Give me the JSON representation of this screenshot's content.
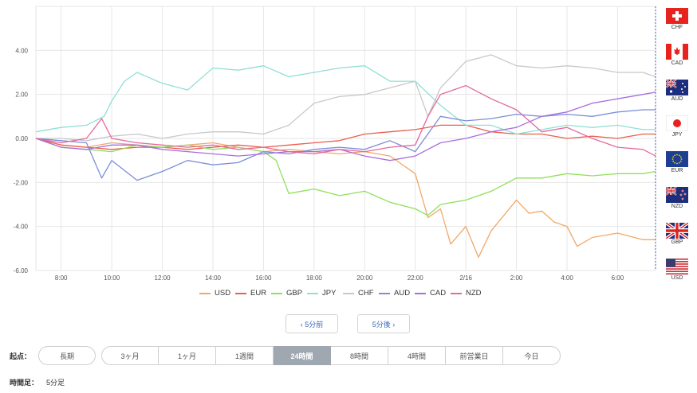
{
  "chart_data": {
    "type": "line",
    "ylim": [
      -6,
      6
    ],
    "yticks": [
      "4.00",
      "2.00",
      "0.00",
      "-2.00",
      "-4.00",
      "-6.00"
    ],
    "ytick_values": [
      4,
      2,
      0,
      -2,
      -4,
      -6
    ],
    "xlim": [
      7,
      31.5
    ],
    "xticks": [
      "8:00",
      "10:00",
      "12:00",
      "14:00",
      "16:00",
      "18:00",
      "20:00",
      "22:00",
      "2/16",
      "2:00",
      "4:00",
      "6:00"
    ],
    "xtick_values": [
      8,
      10,
      12,
      14,
      16,
      18,
      20,
      22,
      24,
      26,
      28,
      30
    ],
    "grid": true,
    "legend_position": "bottom",
    "series": [
      {
        "name": "USD",
        "color": "#f0a868",
        "points": [
          [
            7,
            0
          ],
          [
            8,
            -0.3
          ],
          [
            9,
            -0.4
          ],
          [
            10,
            -0.2
          ],
          [
            11,
            -0.3
          ],
          [
            12,
            -0.4
          ],
          [
            13,
            -0.3
          ],
          [
            14,
            -0.2
          ],
          [
            15,
            -0.4
          ],
          [
            16,
            -0.6
          ],
          [
            17,
            -0.5
          ],
          [
            18,
            -0.6
          ],
          [
            19,
            -0.7
          ],
          [
            20,
            -0.6
          ],
          [
            21,
            -0.8
          ],
          [
            22,
            -1.6
          ],
          [
            22.5,
            -3.6
          ],
          [
            23,
            -3.2
          ],
          [
            23.4,
            -4.8
          ],
          [
            24,
            -4.0
          ],
          [
            24.5,
            -5.4
          ],
          [
            25,
            -4.2
          ],
          [
            26,
            -2.8
          ],
          [
            26.5,
            -3.4
          ],
          [
            27,
            -3.3
          ],
          [
            27.5,
            -3.8
          ],
          [
            28,
            -4.0
          ],
          [
            28.4,
            -4.9
          ],
          [
            29,
            -4.5
          ],
          [
            30,
            -4.3
          ],
          [
            31,
            -4.6
          ],
          [
            31.5,
            -4.6
          ]
        ]
      },
      {
        "name": "EUR",
        "color": "#ea5e4d",
        "points": [
          [
            7,
            0
          ],
          [
            8,
            -0.3
          ],
          [
            9,
            -0.4
          ],
          [
            10,
            -0.5
          ],
          [
            11,
            -0.4
          ],
          [
            12,
            -0.4
          ],
          [
            13,
            -0.5
          ],
          [
            14,
            -0.4
          ],
          [
            15,
            -0.3
          ],
          [
            16,
            -0.4
          ],
          [
            17,
            -0.3
          ],
          [
            18,
            -0.2
          ],
          [
            19,
            -0.1
          ],
          [
            20,
            0.2
          ],
          [
            21,
            0.3
          ],
          [
            22,
            0.4
          ],
          [
            23,
            0.6
          ],
          [
            24,
            0.6
          ],
          [
            25,
            0.3
          ],
          [
            26,
            0.2
          ],
          [
            27,
            0.2
          ],
          [
            28,
            0.0
          ],
          [
            29,
            0.1
          ],
          [
            30,
            0.0
          ],
          [
            31,
            0.2
          ],
          [
            31.5,
            0.2
          ]
        ]
      },
      {
        "name": "GBP",
        "color": "#8fe05a",
        "points": [
          [
            7,
            0
          ],
          [
            8,
            -0.4
          ],
          [
            9,
            -0.5
          ],
          [
            10,
            -0.6
          ],
          [
            11,
            -0.3
          ],
          [
            12,
            -0.4
          ],
          [
            13,
            -0.3
          ],
          [
            14,
            -0.5
          ],
          [
            15,
            -0.4
          ],
          [
            16,
            -0.6
          ],
          [
            16.5,
            -1.0
          ],
          [
            17,
            -2.5
          ],
          [
            18,
            -2.3
          ],
          [
            19,
            -2.6
          ],
          [
            20,
            -2.4
          ],
          [
            21,
            -2.9
          ],
          [
            22,
            -3.2
          ],
          [
            22.5,
            -3.5
          ],
          [
            23,
            -3.0
          ],
          [
            24,
            -2.8
          ],
          [
            25,
            -2.4
          ],
          [
            26,
            -1.8
          ],
          [
            27,
            -1.8
          ],
          [
            28,
            -1.6
          ],
          [
            29,
            -1.7
          ],
          [
            30,
            -1.6
          ],
          [
            31,
            -1.6
          ],
          [
            31.5,
            -1.5
          ]
        ]
      },
      {
        "name": "JPY",
        "color": "#8ee0d6",
        "points": [
          [
            7,
            0.3
          ],
          [
            8,
            0.5
          ],
          [
            9,
            0.6
          ],
          [
            9.7,
            1.0
          ],
          [
            10,
            1.7
          ],
          [
            10.5,
            2.6
          ],
          [
            11,
            3.0
          ],
          [
            12,
            2.5
          ],
          [
            13,
            2.2
          ],
          [
            14,
            3.2
          ],
          [
            15,
            3.1
          ],
          [
            16,
            3.3
          ],
          [
            17,
            2.8
          ],
          [
            18,
            3.0
          ],
          [
            19,
            3.2
          ],
          [
            20,
            3.3
          ],
          [
            21,
            2.6
          ],
          [
            22,
            2.6
          ],
          [
            23,
            1.5
          ],
          [
            24,
            0.6
          ],
          [
            25,
            0.6
          ],
          [
            26,
            0.2
          ],
          [
            27,
            0.4
          ],
          [
            28,
            0.6
          ],
          [
            29,
            0.5
          ],
          [
            30,
            0.6
          ],
          [
            31,
            0.4
          ],
          [
            31.5,
            0.4
          ]
        ]
      },
      {
        "name": "CHF",
        "color": "#c8c8c8",
        "points": [
          [
            7,
            0
          ],
          [
            8,
            0
          ],
          [
            9,
            -0.1
          ],
          [
            10,
            0.1
          ],
          [
            11,
            0.2
          ],
          [
            12,
            0
          ],
          [
            13,
            0.2
          ],
          [
            14,
            0.3
          ],
          [
            15,
            0.3
          ],
          [
            16,
            0.2
          ],
          [
            17,
            0.6
          ],
          [
            18,
            1.6
          ],
          [
            19,
            1.9
          ],
          [
            20,
            2.0
          ],
          [
            21,
            2.3
          ],
          [
            22,
            2.6
          ],
          [
            22.5,
            1.0
          ],
          [
            23,
            2.3
          ],
          [
            24,
            3.5
          ],
          [
            25,
            3.8
          ],
          [
            26,
            3.3
          ],
          [
            27,
            3.2
          ],
          [
            28,
            3.3
          ],
          [
            29,
            3.2
          ],
          [
            30,
            3.0
          ],
          [
            31,
            3.0
          ],
          [
            31.5,
            2.8
          ]
        ]
      },
      {
        "name": "AUD",
        "color": "#7b8ed8",
        "points": [
          [
            7,
            0
          ],
          [
            8,
            -0.1
          ],
          [
            9,
            -0.2
          ],
          [
            9.6,
            -1.8
          ],
          [
            10,
            -1.0
          ],
          [
            11,
            -1.9
          ],
          [
            12,
            -1.5
          ],
          [
            13,
            -1.0
          ],
          [
            14,
            -1.2
          ],
          [
            15,
            -1.1
          ],
          [
            16,
            -0.6
          ],
          [
            17,
            -0.7
          ],
          [
            18,
            -0.5
          ],
          [
            19,
            -0.4
          ],
          [
            20,
            -0.5
          ],
          [
            21,
            -0.1
          ],
          [
            22,
            -0.6
          ],
          [
            23,
            1.0
          ],
          [
            24,
            0.8
          ],
          [
            25,
            0.9
          ],
          [
            26,
            1.1
          ],
          [
            27,
            1.0
          ],
          [
            28,
            1.1
          ],
          [
            29,
            1.0
          ],
          [
            30,
            1.2
          ],
          [
            31,
            1.3
          ],
          [
            31.5,
            1.3
          ]
        ]
      },
      {
        "name": "CAD",
        "color": "#a66ee0",
        "points": [
          [
            7,
            0
          ],
          [
            8,
            -0.4
          ],
          [
            9,
            -0.5
          ],
          [
            10,
            -0.3
          ],
          [
            11,
            -0.3
          ],
          [
            12,
            -0.5
          ],
          [
            13,
            -0.6
          ],
          [
            14,
            -0.7
          ],
          [
            15,
            -0.8
          ],
          [
            16,
            -0.7
          ],
          [
            17,
            -0.6
          ],
          [
            18,
            -0.6
          ],
          [
            19,
            -0.5
          ],
          [
            20,
            -0.8
          ],
          [
            21,
            -1.0
          ],
          [
            22,
            -0.8
          ],
          [
            23,
            -0.2
          ],
          [
            24,
            0.0
          ],
          [
            25,
            0.3
          ],
          [
            26,
            0.5
          ],
          [
            27,
            1.0
          ],
          [
            28,
            1.2
          ],
          [
            29,
            1.6
          ],
          [
            30,
            1.8
          ],
          [
            31,
            2.0
          ],
          [
            31.5,
            2.1
          ]
        ]
      },
      {
        "name": "NZD",
        "color": "#e5689e",
        "points": [
          [
            7,
            0
          ],
          [
            8,
            -0.2
          ],
          [
            9,
            0.0
          ],
          [
            9.6,
            0.9
          ],
          [
            10,
            0
          ],
          [
            11,
            -0.2
          ],
          [
            12,
            -0.3
          ],
          [
            13,
            -0.4
          ],
          [
            14,
            -0.3
          ],
          [
            15,
            -0.5
          ],
          [
            16,
            -0.4
          ],
          [
            17,
            -0.6
          ],
          [
            18,
            -0.7
          ],
          [
            19,
            -0.5
          ],
          [
            20,
            -0.6
          ],
          [
            21,
            -0.4
          ],
          [
            22,
            -0.3
          ],
          [
            22.5,
            1.0
          ],
          [
            23,
            2.0
          ],
          [
            24,
            2.4
          ],
          [
            25,
            1.8
          ],
          [
            26,
            1.3
          ],
          [
            27,
            0.3
          ],
          [
            28,
            0.5
          ],
          [
            29,
            0.0
          ],
          [
            30,
            -0.4
          ],
          [
            31,
            -0.5
          ],
          [
            31.5,
            -0.8
          ]
        ]
      }
    ]
  },
  "flags": [
    {
      "code": "CHF"
    },
    {
      "code": "CAD"
    },
    {
      "code": "AUD"
    },
    {
      "code": "JPY"
    },
    {
      "code": "EUR"
    },
    {
      "code": "NZD"
    },
    {
      "code": "GBP"
    },
    {
      "code": "USD"
    }
  ],
  "nav": {
    "prev_label": "‹ 5分前",
    "next_label": "5分後 ›"
  },
  "start_point": {
    "label": "起点：",
    "long_term": "長期",
    "options": [
      "3ヶ月",
      "1ヶ月",
      "1週間",
      "24時間",
      "8時間",
      "4時間",
      "前営業日",
      "今日"
    ],
    "active": "24時間"
  },
  "timeframe": {
    "label": "時間足：",
    "value": "5分足"
  }
}
